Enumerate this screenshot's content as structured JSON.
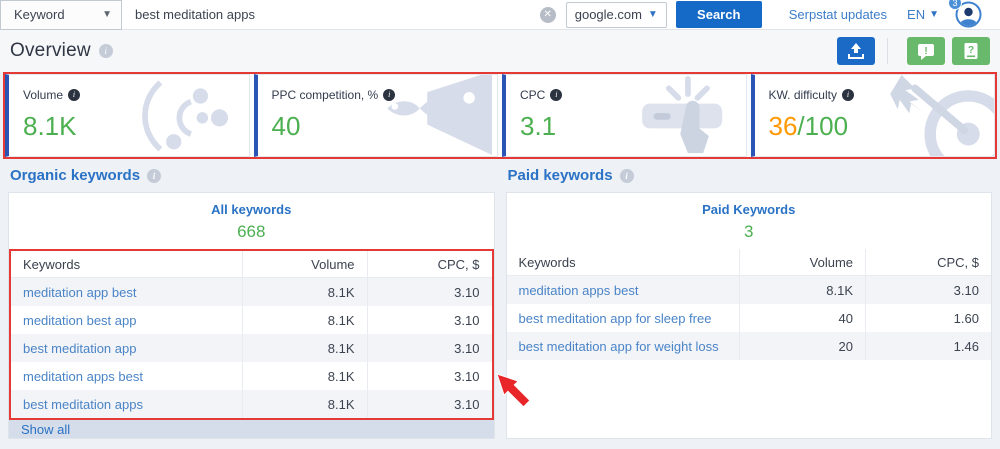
{
  "topbar": {
    "search_type": {
      "label": "Keyword"
    },
    "search": {
      "value": "best meditation apps"
    },
    "region": {
      "value": "google.com"
    },
    "search_button_label": "Search",
    "updates_link": "Serpstat updates",
    "language_label": "EN",
    "notification_badge": "3",
    "clear_icon": "x-circle-icon"
  },
  "header": {
    "title": "Overview",
    "export_icon": "export-upload-icon",
    "feedback_icon": "chat-exclamation-icon",
    "help_icon": "doc-question-icon"
  },
  "metrics": {
    "cards": [
      {
        "label": "Volume",
        "value": "8.1K",
        "icon": "orbit-circles-icon"
      },
      {
        "label": "PPC competition, %",
        "value": "40",
        "icon": "fish-icon"
      },
      {
        "label": "CPC",
        "value": "3.1",
        "icon": "click-hand-icon"
      },
      {
        "label": "KW. difficulty",
        "value": "36",
        "suffix": "/100",
        "icon": "dart-target-icon"
      }
    ]
  },
  "organic": {
    "section_title": "Organic keywords",
    "summary_label": "All keywords",
    "summary_value": "668",
    "columns": {
      "keyword": "Keywords",
      "volume": "Volume",
      "cpc": "CPC, $"
    },
    "rows": [
      {
        "keyword": "meditation app best",
        "volume": "8.1K",
        "cpc": "3.10"
      },
      {
        "keyword": "meditation best app",
        "volume": "8.1K",
        "cpc": "3.10"
      },
      {
        "keyword": "best meditation app",
        "volume": "8.1K",
        "cpc": "3.10"
      },
      {
        "keyword": "meditation apps best",
        "volume": "8.1K",
        "cpc": "3.10"
      },
      {
        "keyword": "best meditation apps",
        "volume": "8.1K",
        "cpc": "3.10"
      }
    ],
    "show_all_label": "Show all"
  },
  "paid": {
    "section_title": "Paid keywords",
    "summary_label": "Paid Keywords",
    "summary_value": "3",
    "columns": {
      "keyword": "Keywords",
      "volume": "Volume",
      "cpc": "CPC, $"
    },
    "rows": [
      {
        "keyword": "meditation apps best",
        "volume": "8.1K",
        "cpc": "3.10"
      },
      {
        "keyword": "best meditation app for sleep free",
        "volume": "40",
        "cpc": "1.60"
      },
      {
        "keyword": "best meditation app for weight loss",
        "volume": "20",
        "cpc": "1.46"
      }
    ]
  },
  "colors": {
    "accent_blue": "#1b6ac6",
    "link_blue": "#4a84c7",
    "section_blue": "#2a72c5",
    "value_green": "#4caf50",
    "warning_orange": "#ff9800",
    "annotation_red": "#e53935",
    "button_green": "#68b96b",
    "card_left_bar": "#2a55b4",
    "art_gray": "#d6dce9"
  }
}
